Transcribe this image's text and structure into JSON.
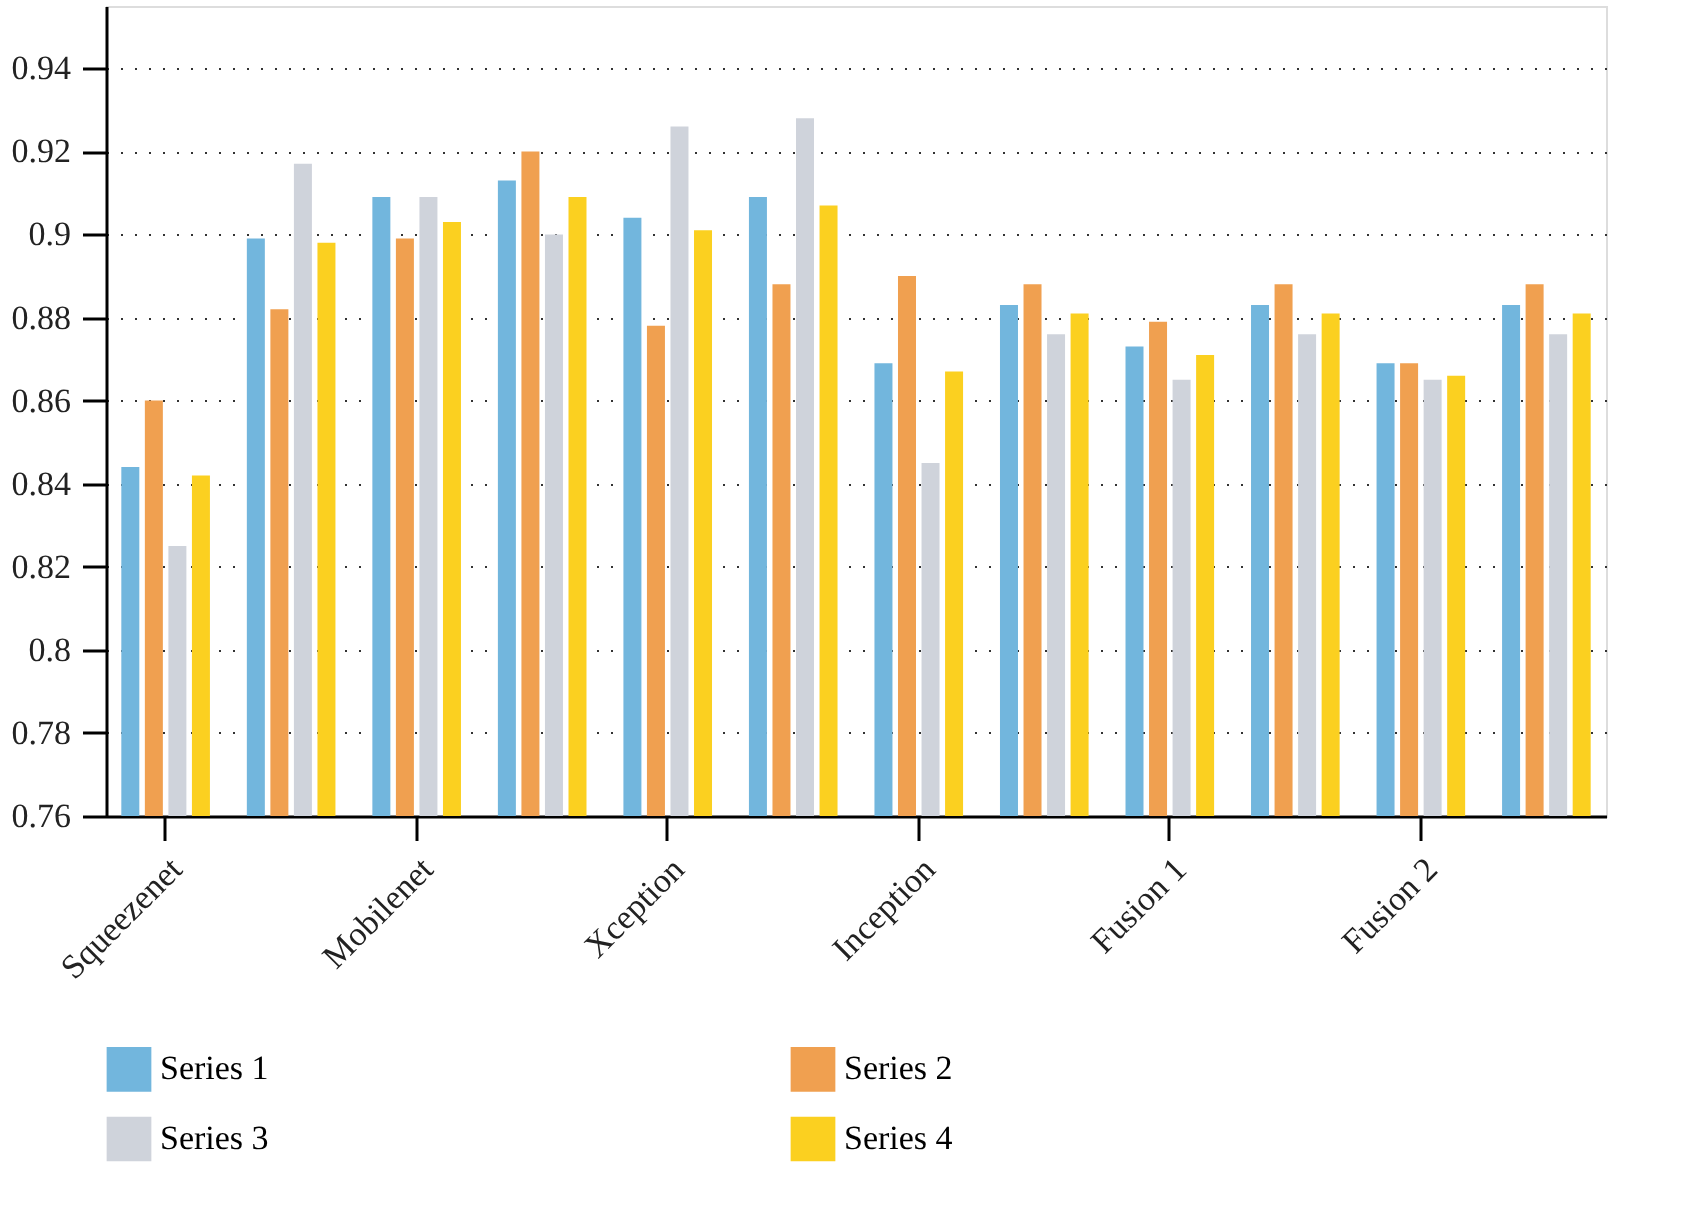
{
  "chart_data": {
    "type": "bar",
    "categories": [
      "Squeezenet",
      null,
      "Mobilenet",
      null,
      "Xception",
      null,
      "Inception",
      null,
      "Fusion 1",
      null,
      "Fusion 2",
      null
    ],
    "series": [
      {
        "name": "Series 1",
        "color": "#72b6dd",
        "values": [
          0.844,
          0.899,
          0.909,
          0.913,
          0.904,
          0.909,
          0.869,
          0.883,
          0.873,
          0.883,
          0.869,
          0.883
        ]
      },
      {
        "name": "Series 2",
        "color": "#f0a050",
        "values": [
          0.86,
          0.882,
          0.899,
          0.92,
          0.878,
          0.888,
          0.89,
          0.888,
          0.879,
          0.888,
          0.869,
          0.888
        ]
      },
      {
        "name": "Series 3",
        "color": "#cfd3db",
        "values": [
          0.825,
          0.917,
          0.909,
          0.9,
          0.926,
          0.928,
          0.845,
          0.876,
          0.865,
          0.876,
          0.865,
          0.876
        ]
      },
      {
        "name": "Series 4",
        "color": "#fbd020",
        "values": [
          0.842,
          0.898,
          0.903,
          0.909,
          0.901,
          0.907,
          0.867,
          0.881,
          0.871,
          0.881,
          0.866,
          0.881
        ]
      }
    ],
    "ylim": [
      0.76,
      0.955
    ],
    "yticks": [
      0.76,
      0.78,
      0.8,
      0.82,
      0.84,
      0.86,
      0.88,
      0.9,
      0.92,
      0.94
    ],
    "grid": "y",
    "legend": "bottom"
  }
}
